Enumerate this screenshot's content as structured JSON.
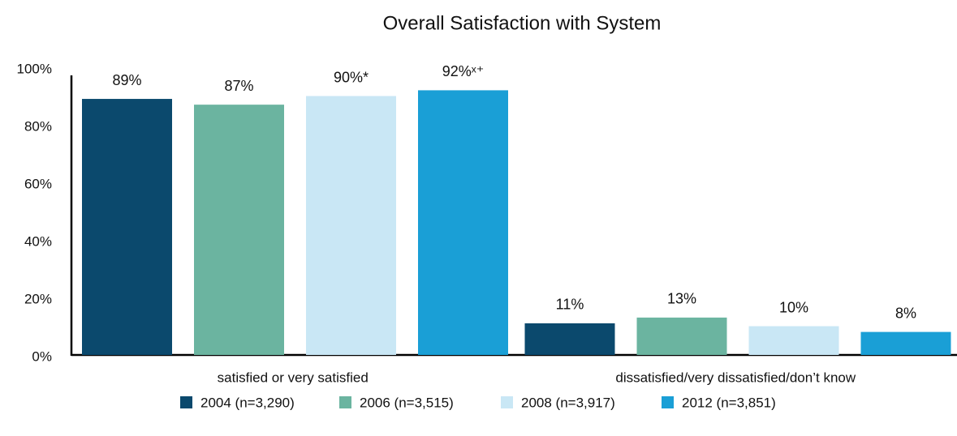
{
  "chart_data": {
    "type": "bar",
    "title": "Overall Satisfaction with System",
    "categories": [
      "satisfied or very satisfied",
      "dissatisfied/very dissatisfied/don’t know"
    ],
    "series": [
      {
        "name": "2004 (n=3,290)",
        "color": "#0b496d",
        "values": [
          89,
          11
        ],
        "value_labels": [
          "89%",
          "11%"
        ]
      },
      {
        "name": "2006 (n=3,515)",
        "color": "#6bb4a0",
        "values": [
          87,
          13
        ],
        "value_labels": [
          "87%",
          "13%"
        ]
      },
      {
        "name": "2008 (n=3,917)",
        "color": "#c9e7f5",
        "values": [
          90,
          10
        ],
        "value_labels": [
          "90%*",
          "10%"
        ]
      },
      {
        "name": "2012 (n=3,851)",
        "color": "#1a9fd6",
        "values": [
          92,
          8
        ],
        "value_labels": [
          "92%ˣ⁺",
          "8%"
        ]
      }
    ],
    "ylim": [
      0,
      100
    ],
    "yticks": [
      {
        "value": 0,
        "label": "0%"
      },
      {
        "value": 20,
        "label": "20%"
      },
      {
        "value": 40,
        "label": "40%"
      },
      {
        "value": 60,
        "label": "60%"
      },
      {
        "value": 80,
        "label": "80%"
      },
      {
        "value": 100,
        "label": "100%"
      }
    ],
    "legend": "bottom"
  }
}
